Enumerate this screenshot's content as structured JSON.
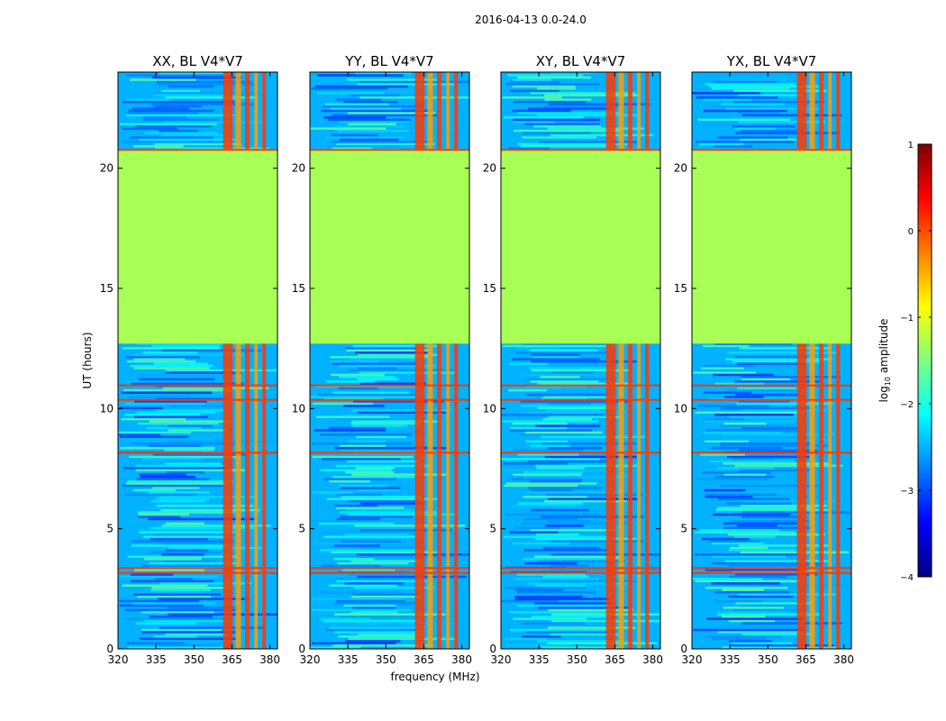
{
  "chart_data": {
    "type": "heatmap",
    "suptitle": "2016-04-13 0.0-24.0",
    "xlabel": "frequency (MHz)",
    "ylabel": "UT (hours)",
    "xlim": [
      320,
      383
    ],
    "ylim": [
      0,
      24
    ],
    "xticks": [
      320,
      335,
      350,
      365,
      380
    ],
    "yticks": [
      0,
      5,
      10,
      15,
      20
    ],
    "colorbar": {
      "label": "log10 amplitude",
      "range": [
        -4,
        1
      ],
      "ticks": [
        1,
        0,
        -1,
        -2,
        -3,
        -4
      ],
      "tick_labels": [
        "1",
        "0",
        "−1",
        "−2",
        "−3",
        "−4"
      ],
      "colormap": "jet",
      "colors": [
        "#00007f",
        "#0000ff",
        "#007fff",
        "#00ffff",
        "#7fff7f",
        "#ffff00",
        "#ff7f00",
        "#ff0000",
        "#7f0000"
      ]
    },
    "panels": [
      {
        "title": "XX, BL V4*V7",
        "polarization": "XX"
      },
      {
        "title": "YY, BL V4*V7",
        "polarization": "YY"
      },
      {
        "title": "XY, BL V4*V7",
        "polarization": "XY"
      },
      {
        "title": "YX, BL V4*V7",
        "polarization": "YX"
      }
    ],
    "features": {
      "flagged_uniform_value": -1.3,
      "flagged_block_ut": [
        12.7,
        20.8
      ],
      "rfi_band_mhz": [
        361,
        381
      ],
      "rfi_columns_mhz": [
        [
          361.5,
          365.3
        ],
        [
          366.4,
          368.6
        ],
        [
          370.2,
          372.0
        ],
        [
          373.8,
          375.2
        ],
        [
          377.0,
          378.5
        ]
      ],
      "rfi_column_log_amp": 0.1,
      "background_log_amp": -2.5,
      "bright_rows_ut": [
        3.2,
        3.4,
        8.2,
        10.4,
        11.0,
        20.8
      ],
      "bright_row_log_amp": 0.1
    }
  }
}
